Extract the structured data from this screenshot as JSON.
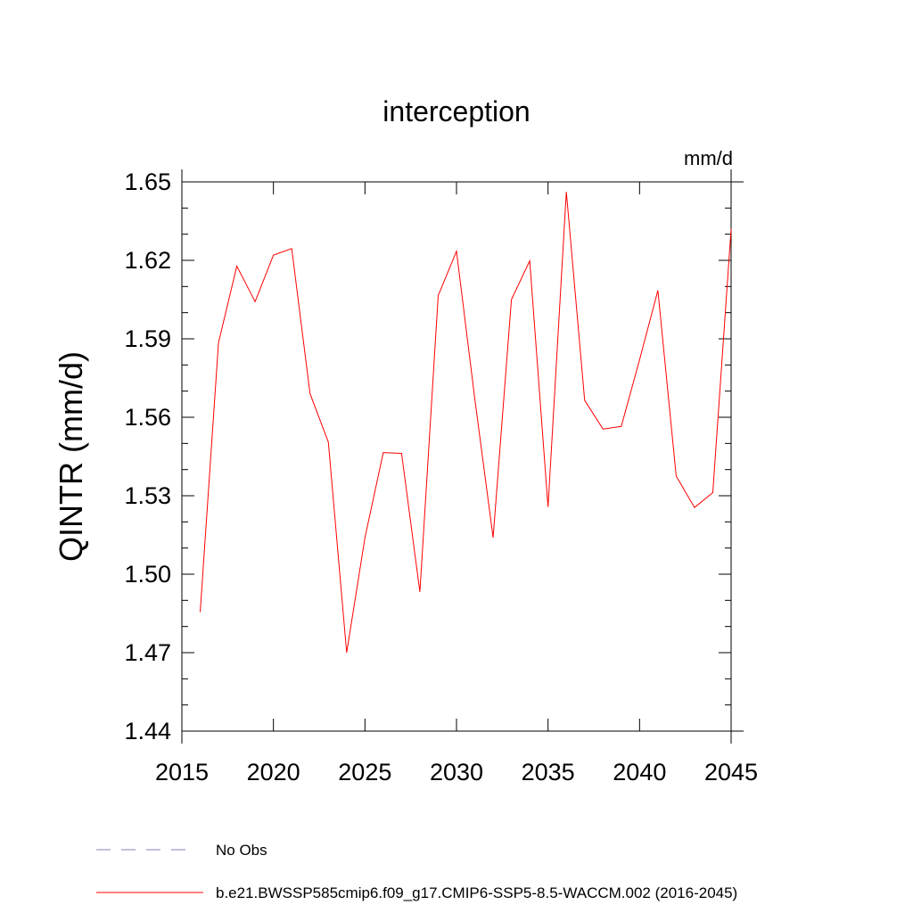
{
  "chart_data": {
    "type": "line",
    "title": "interception",
    "units": "mm/d",
    "ylabel": "QINTR  (mm/d)",
    "xlabel": "",
    "xlim": [
      2015,
      2045
    ],
    "ylim": [
      1.44,
      1.65
    ],
    "x_ticks": [
      2015,
      2020,
      2025,
      2030,
      2035,
      2040,
      2045
    ],
    "x_tick_labels": [
      "2015",
      "2020",
      "2025",
      "2030",
      "2035",
      "2040",
      "2045"
    ],
    "y_ticks": [
      1.44,
      1.47,
      1.5,
      1.53,
      1.56,
      1.59,
      1.62,
      1.65
    ],
    "y_tick_labels": [
      "1.44",
      "1.47",
      "1.50",
      "1.53",
      "1.56",
      "1.59",
      "1.62",
      "1.65"
    ],
    "grid": false,
    "series": [
      {
        "name": "b.e21.BWSSP585cmip6.f09_g17.CMIP6-SSP5-8.5-WACCM.002 (2016-2045)",
        "color": "#ff0000",
        "style": "solid",
        "x": [
          2016,
          2017,
          2018,
          2019,
          2020,
          2021,
          2022,
          2023,
          2024,
          2025,
          2026,
          2027,
          2028,
          2029,
          2030,
          2031,
          2032,
          2033,
          2034,
          2035,
          2036,
          2037,
          2038,
          2039,
          2040,
          2041,
          2042,
          2043,
          2044,
          2045
        ],
        "y": [
          1.4855,
          1.5885,
          1.6178,
          1.6042,
          1.622,
          1.6245,
          1.569,
          1.5505,
          1.47,
          1.514,
          1.5465,
          1.5462,
          1.4932,
          1.6065,
          1.6235,
          1.567,
          1.514,
          1.605,
          1.6198,
          1.5257,
          1.6462,
          1.5665,
          1.5555,
          1.5565,
          1.582,
          1.6085,
          1.5375,
          1.5255,
          1.5312,
          1.632
        ]
      }
    ],
    "legend": {
      "position": "bottom-left",
      "entries": [
        {
          "label": "No Obs",
          "color": "#8080c0",
          "style": "dashed"
        },
        {
          "label": "b.e21.BWSSP585cmip6.f09_g17.CMIP6-SSP5-8.5-WACCM.002 (2016-2045)",
          "color": "#ff0000",
          "style": "solid"
        }
      ]
    }
  }
}
